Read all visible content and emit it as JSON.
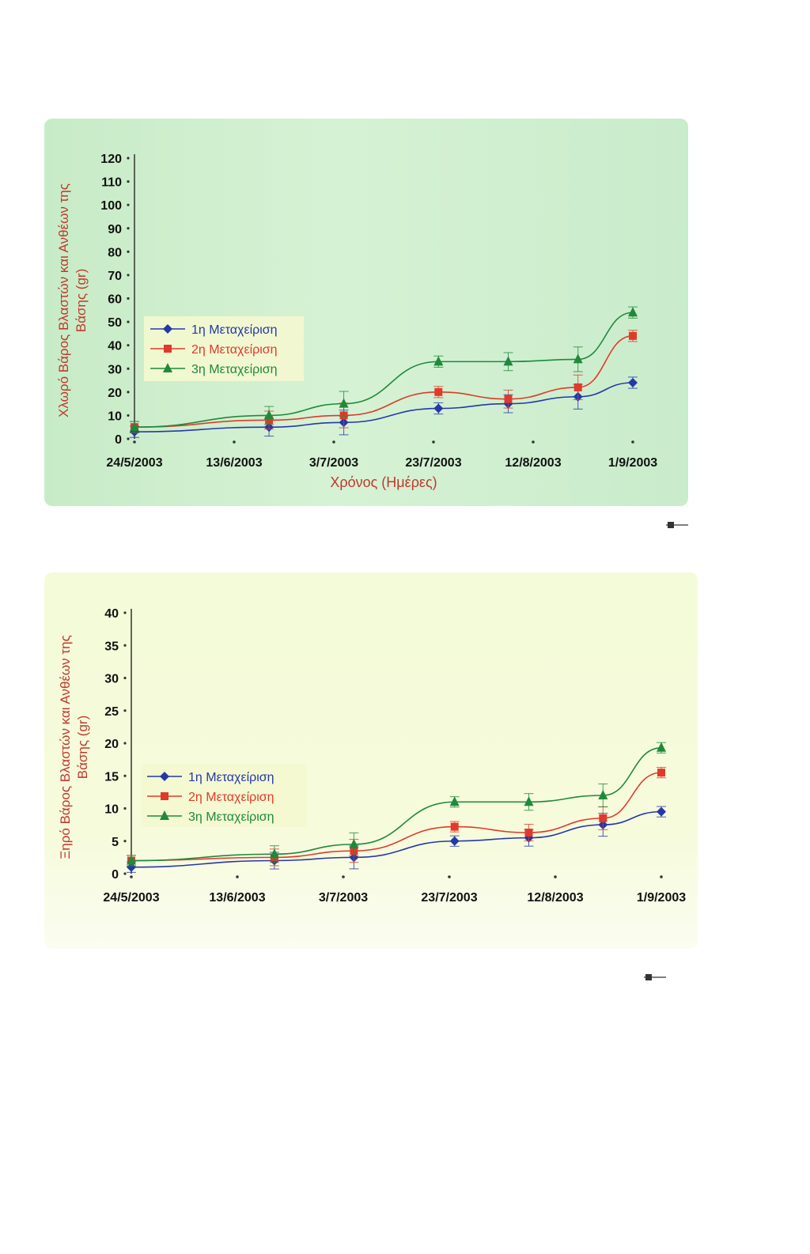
{
  "chart_data": [
    {
      "type": "line",
      "title": "",
      "ylabel": "Χλωρό Βάρος Βλαστών και Ανθέων της Βάσης (gr)",
      "xlabel": "Χρόνος (Ημέρες)",
      "ylim": [
        0,
        120
      ],
      "yticks": [
        "0",
        "10",
        "20",
        "30",
        "40",
        "50",
        "60",
        "70",
        "80",
        "90",
        "100",
        "110",
        "120"
      ],
      "xticks": [
        "24/5/2003",
        "13/6/2003",
        "3/7/2003",
        "23/7/2003",
        "12/8/2003",
        "1/9/2003"
      ],
      "series": [
        {
          "name": "1η Μεταχείριση",
          "color": "#2438a8",
          "marker": "diamond",
          "x": [
            "2003-05-24",
            "2003-06-20",
            "2003-07-05",
            "2003-07-24",
            "2003-08-07",
            "2003-08-21",
            "2003-09-01"
          ],
          "y": [
            3,
            5,
            7,
            13,
            15,
            18,
            24
          ]
        },
        {
          "name": "2η Μεταχείριση",
          "color": "#e03a2a",
          "marker": "square",
          "x": [
            "2003-05-24",
            "2003-06-20",
            "2003-07-05",
            "2003-07-24",
            "2003-08-07",
            "2003-08-21",
            "2003-09-01"
          ],
          "y": [
            5,
            8,
            10,
            20,
            17,
            22,
            44
          ]
        },
        {
          "name": "3η Μεταχείριση",
          "color": "#1e8a3a",
          "marker": "triangle",
          "x": [
            "2003-05-24",
            "2003-06-20",
            "2003-07-05",
            "2003-07-24",
            "2003-08-07",
            "2003-08-21",
            "2003-09-01"
          ],
          "y": [
            5,
            10,
            15,
            33,
            33,
            34,
            54
          ]
        }
      ],
      "legend": "center-left",
      "grid": false
    },
    {
      "type": "line",
      "title": "",
      "ylabel": "Ξηρό Βάρος Βλαστών και Ανθέων της Βάσης (gr)",
      "xlabel": "",
      "ylim": [
        0,
        40
      ],
      "yticks": [
        "0",
        "5",
        "10",
        "15",
        "20",
        "25",
        "30",
        "35",
        "40"
      ],
      "xticks": [
        "24/5/2003",
        "13/6/2003",
        "3/7/2003",
        "23/7/2003",
        "12/8/2003",
        "1/9/2003"
      ],
      "series": [
        {
          "name": "1η Μεταχείριση",
          "color": "#2438a8",
          "marker": "diamond",
          "x": [
            "2003-05-24",
            "2003-06-20",
            "2003-07-05",
            "2003-07-24",
            "2003-08-07",
            "2003-08-21",
            "2003-09-01"
          ],
          "y": [
            1,
            2,
            2.5,
            5,
            5.5,
            7.5,
            9.5
          ]
        },
        {
          "name": "2η Μεταχείριση",
          "color": "#e03a2a",
          "marker": "square",
          "x": [
            "2003-05-24",
            "2003-06-20",
            "2003-07-05",
            "2003-07-24",
            "2003-08-07",
            "2003-08-21",
            "2003-09-01"
          ],
          "y": [
            2,
            2.5,
            3.5,
            7.2,
            6.3,
            8.5,
            15.5
          ]
        },
        {
          "name": "3η Μεταχείριση",
          "color": "#1e8a3a",
          "marker": "triangle",
          "x": [
            "2003-05-24",
            "2003-06-20",
            "2003-07-05",
            "2003-07-24",
            "2003-08-07",
            "2003-08-21",
            "2003-09-01"
          ],
          "y": [
            2,
            3,
            4.5,
            11,
            11,
            12,
            19.3
          ]
        }
      ],
      "legend": "center-left",
      "grid": false
    }
  ]
}
